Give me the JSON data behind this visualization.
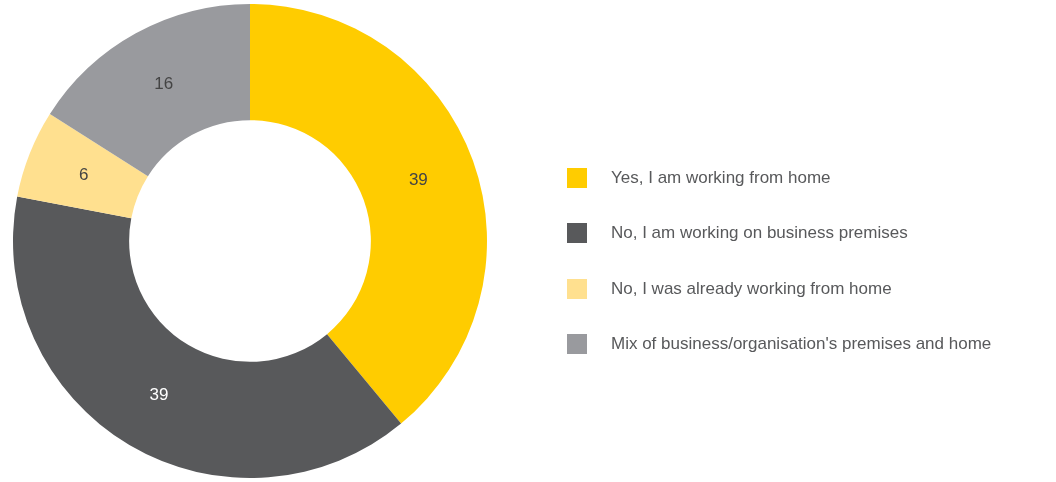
{
  "chart_data": {
    "type": "donut",
    "categories": [
      "Yes, I am working from home",
      "No, I am working on business premises",
      "No, I was already working from home",
      "Mix of business/organisation's premises and home"
    ],
    "values": [
      39,
      39,
      6,
      16
    ],
    "colors": [
      "#ffcc00",
      "#58595b",
      "#ffe08f",
      "#999a9e"
    ],
    "data_labels": true,
    "legend": "right"
  }
}
